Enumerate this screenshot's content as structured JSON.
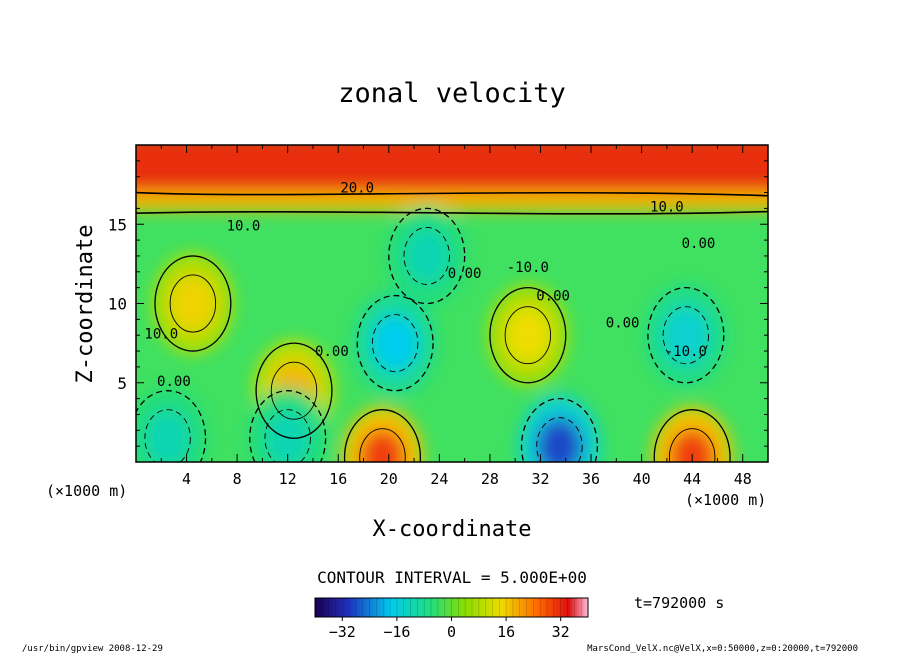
{
  "chart_data": {
    "type": "heatmap",
    "title": "zonal velocity",
    "xlabel": "X-coordinate",
    "ylabel": "Z-coordinate",
    "x_unit": "(×1000 m)",
    "y_unit": "(×1000 m)",
    "xlim": [
      0,
      50
    ],
    "ylim": [
      0,
      20
    ],
    "x_ticks": [
      4,
      8,
      12,
      16,
      20,
      24,
      28,
      32,
      36,
      40,
      44,
      48
    ],
    "y_ticks": [
      5,
      10,
      15
    ],
    "contour_interval_text": "CONTOUR INTERVAL = 5.000E+00",
    "contour_labels": [
      "20.0",
      "10.0",
      "10.0",
      "0.00",
      "0.00",
      "0.00",
      "10.0",
      "0.00",
      "0.00",
      "-10.0",
      "-10.0",
      "0.00"
    ],
    "colorbar": {
      "range": [
        -40,
        40
      ],
      "ticks": [
        -32,
        -16,
        0,
        16,
        32
      ],
      "tick_labels": [
        "−32",
        "−16",
        "0",
        "16",
        "32"
      ]
    },
    "time_text": "t=792000 s",
    "features": [
      {
        "kind": "jet",
        "x": [
          0,
          50
        ],
        "z": [
          17,
          20
        ],
        "value": 32
      },
      {
        "kind": "max",
        "x": 4.5,
        "z": 10,
        "value": 15
      },
      {
        "kind": "max",
        "x": 12.5,
        "z": 4.5,
        "value": 18
      },
      {
        "kind": "min",
        "x": 20.5,
        "z": 7.5,
        "value": -18
      },
      {
        "kind": "min",
        "x": 43.5,
        "z": 8,
        "value": -15
      },
      {
        "kind": "max",
        "x": 31,
        "z": 8,
        "value": 14
      },
      {
        "kind": "min",
        "x": 33.5,
        "z": 1,
        "value": -28
      },
      {
        "kind": "min",
        "x": 2.5,
        "z": 1.5,
        "value": -12
      },
      {
        "kind": "max",
        "x": 19.5,
        "z": 0.3,
        "value": 30
      },
      {
        "kind": "max",
        "x": 44,
        "z": 0.3,
        "value": 30
      },
      {
        "kind": "min",
        "x": 12,
        "z": 1.5,
        "value": -12
      },
      {
        "kind": "min",
        "x": 23,
        "z": 13,
        "value": -12
      }
    ]
  },
  "footer": {
    "left": "/usr/bin/gpview  2008-12-29",
    "right": "MarsCond_VelX.nc@VelX,x=0:50000,z=0:20000,t=792000"
  }
}
